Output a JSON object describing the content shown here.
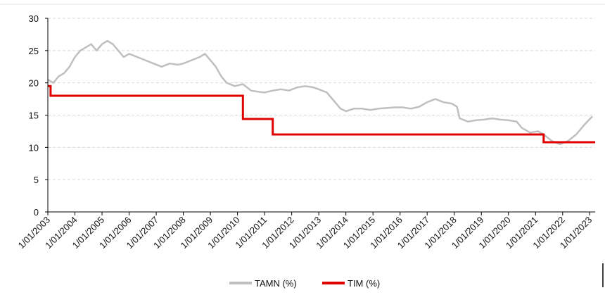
{
  "chart_data": {
    "type": "line",
    "title": "",
    "xlabel": "",
    "ylabel": "",
    "ylim": [
      0,
      30
    ],
    "yticks": [
      0,
      5,
      10,
      15,
      20,
      25,
      30
    ],
    "xlim": [
      2003,
      2023.2
    ],
    "grid": true,
    "legend_position": "bottom",
    "categories": [
      "1/01/2003",
      "1/01/2004",
      "1/01/2005",
      "1/01/2006",
      "1/01/2007",
      "1/01/2008",
      "1/01/2009",
      "1/01/2010",
      "1/01/2011",
      "1/01/2012",
      "1/01/2013",
      "1/01/2014",
      "1/01/2015",
      "1/01/2016",
      "1/01/2017",
      "1/01/2018",
      "1/01/2019",
      "1/01/2020",
      "1/01/2021",
      "1/01/2022",
      "1/01/2023"
    ],
    "series": [
      {
        "name": "TAMN (%)",
        "color": "#bfbfbf",
        "style": "line",
        "x": [
          2003.0,
          2003.2,
          2003.4,
          2003.6,
          2003.8,
          2004.0,
          2004.2,
          2004.4,
          2004.6,
          2004.8,
          2005.0,
          2005.2,
          2005.4,
          2005.6,
          2005.8,
          2006.0,
          2006.3,
          2006.6,
          2006.9,
          2007.2,
          2007.5,
          2007.8,
          2008.0,
          2008.3,
          2008.6,
          2008.8,
          2009.0,
          2009.2,
          2009.4,
          2009.6,
          2009.9,
          2010.2,
          2010.5,
          2010.8,
          2011.0,
          2011.3,
          2011.6,
          2011.9,
          2012.2,
          2012.5,
          2012.8,
          2013.0,
          2013.3,
          2013.6,
          2013.8,
          2014.0,
          2014.3,
          2014.6,
          2014.9,
          2015.2,
          2015.5,
          2015.8,
          2016.1,
          2016.4,
          2016.7,
          2017.0,
          2017.3,
          2017.6,
          2017.9,
          2018.1,
          2018.2,
          2018.5,
          2018.8,
          2019.1,
          2019.4,
          2019.7,
          2020.0,
          2020.3,
          2020.5,
          2020.8,
          2021.1,
          2021.3,
          2021.6,
          2021.9,
          2022.2,
          2022.5,
          2022.8,
          2023.1
        ],
        "values": [
          20.5,
          20.0,
          21.0,
          21.5,
          22.5,
          24.0,
          25.0,
          25.5,
          26.0,
          25.0,
          26.0,
          26.5,
          26.0,
          25.0,
          24.0,
          24.5,
          24.0,
          23.5,
          23.0,
          22.5,
          23.0,
          22.8,
          23.0,
          23.5,
          24.0,
          24.5,
          23.5,
          22.5,
          21.0,
          20.0,
          19.5,
          19.8,
          18.8,
          18.6,
          18.5,
          18.8,
          19.0,
          18.8,
          19.3,
          19.5,
          19.3,
          19.0,
          18.5,
          17.0,
          16.0,
          15.6,
          16.0,
          16.0,
          15.8,
          16.0,
          16.1,
          16.2,
          16.2,
          16.0,
          16.3,
          17.0,
          17.5,
          17.0,
          16.8,
          16.3,
          14.5,
          14.0,
          14.2,
          14.3,
          14.5,
          14.3,
          14.2,
          14.0,
          13.0,
          12.3,
          12.5,
          12.0,
          11.0,
          10.5,
          11.0,
          12.0,
          13.5,
          14.8
        ]
      },
      {
        "name": "TIM (%)",
        "color": "#e00000",
        "style": "step",
        "x": [
          2003.0,
          2003.1,
          2003.1,
          2010.2,
          2010.2,
          2011.3,
          2011.3,
          2021.3,
          2021.3,
          2023.2
        ],
        "values": [
          19.5,
          19.5,
          18.0,
          18.0,
          14.4,
          14.4,
          12.0,
          12.0,
          10.8,
          10.8
        ]
      }
    ]
  }
}
